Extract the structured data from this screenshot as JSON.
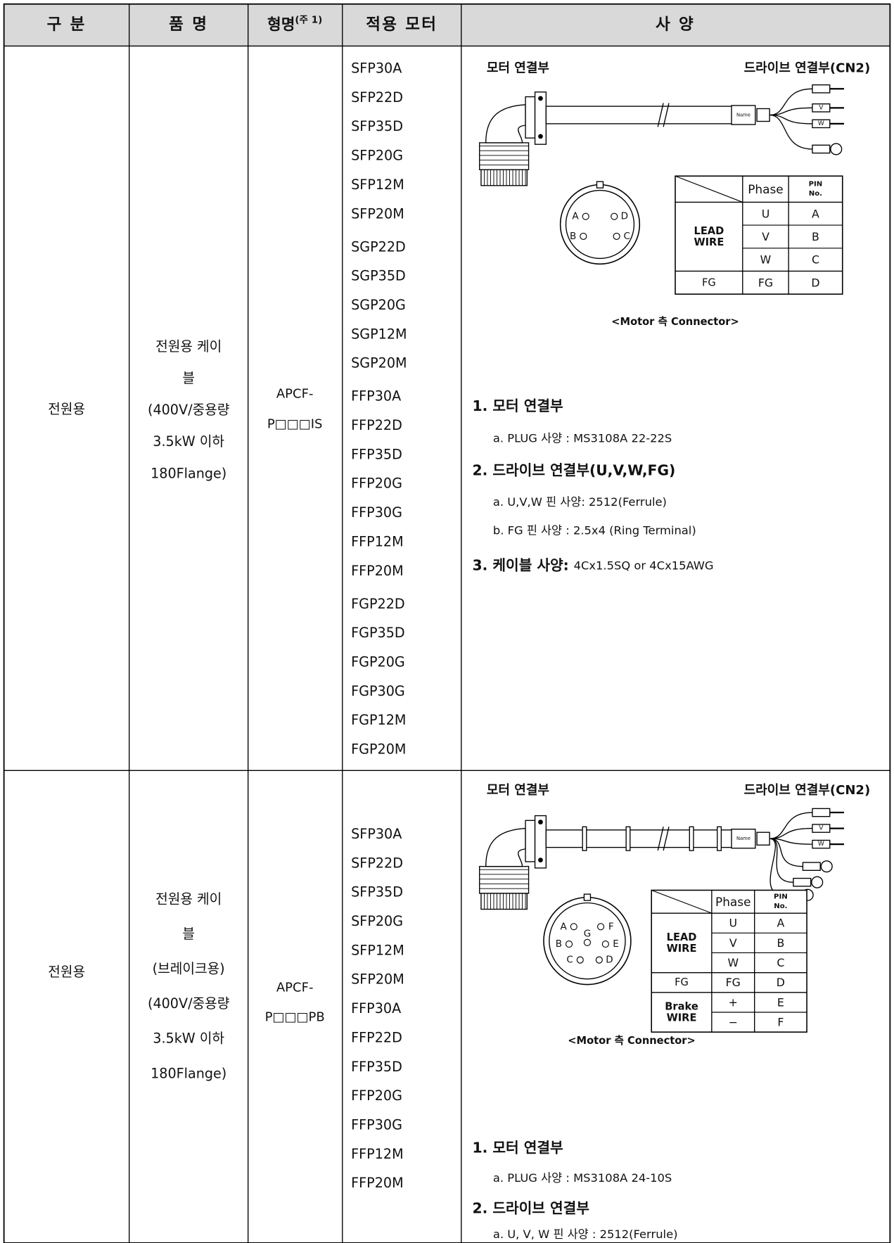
{
  "header": {
    "category": "구 분",
    "product": "품 명",
    "model": "형명",
    "model_note": "(주 1)",
    "motors": "적용 모터",
    "spec": "사 양"
  },
  "rows": [
    {
      "category": "전원용",
      "product": [
        "전원용 케이",
        "블",
        "(400V/중용량",
        "3.5kW 이하",
        "180Flange)"
      ],
      "model": [
        "APCF-",
        "P□□□IS"
      ],
      "motors": [
        [
          "SFP30A",
          "SFP22D",
          "SFP35D",
          "SFP20G",
          "SFP12M",
          "SFP20M"
        ],
        [
          "SGP22D",
          "SGP35D",
          "SGP20G",
          "SGP12M",
          "SGP20M"
        ],
        [
          "FFP30A",
          "FFP22D",
          "FFP35D",
          "FFP20G",
          "FFP30G",
          "FFP12M",
          "FFP20M"
        ],
        [
          "FGP22D",
          "FGP35D",
          "FGP20G",
          "FGP30G",
          "FGP12M",
          "FGP20M"
        ]
      ],
      "spec": {
        "motor_side": "모터 연결부",
        "drive_side": "드라이브 연결부(CN2)",
        "cable_labels": [
          "Name",
          "V",
          "W"
        ],
        "pins": [
          "A",
          "D",
          "B",
          "C"
        ],
        "pin_table": {
          "header": [
            "Phase",
            [
              "PIN",
              "No."
            ]
          ],
          "groups": [
            {
              "name": [
                "LEAD",
                "WIRE"
              ],
              "rows": [
                [
                  "U",
                  "A"
                ],
                [
                  "V",
                  "B"
                ],
                [
                  "W",
                  "C"
                ]
              ]
            },
            {
              "name": [
                "FG"
              ],
              "rows": [
                [
                  "FG",
                  "D"
                ]
              ]
            }
          ]
        },
        "caption": "<Motor 측 Connector>",
        "notes": [
          {
            "heading": "1. 모터 연결부"
          },
          {
            "item": "a. PLUG 사양 : MS3108A 22-22S"
          },
          {
            "heading": "2. 드라이브 연결부(U,V,W,FG)"
          },
          {
            "item": "a. U,V,W 핀 사양: 2512(Ferrule)"
          },
          {
            "item": "b. FG 핀 사양 : 2.5x4 (Ring Terminal)"
          },
          {
            "heading": "3. 케이블 사양:",
            "text": "4Cx1.5SQ or 4Cx15AWG"
          }
        ]
      }
    },
    {
      "category": "전원용",
      "product": [
        "전원용 케이",
        "블",
        "(브레이크용)",
        "(400V/중용량",
        "3.5kW 이하",
        "180Flange)"
      ],
      "model": [
        "APCF-",
        "P□□□PB"
      ],
      "motors": [
        [
          "SFP30A",
          "SFP22D",
          "SFP35D",
          "SFP20G",
          "SFP12M",
          "SFP20M"
        ],
        [
          "FFP30A",
          "FFP22D",
          "FFP35D",
          "FFP20G",
          "FFP30G",
          "FFP12M",
          "FFP20M"
        ]
      ],
      "spec": {
        "motor_side": "모터 연결부",
        "drive_side": "드라이브 연결부(CN2)",
        "cable_labels": [
          "Name",
          "V",
          "W"
        ],
        "pins": [
          "A",
          "F",
          "G",
          "B",
          "E",
          "C",
          "D"
        ],
        "pin_table": {
          "header": [
            "Phase",
            [
              "PIN",
              "No."
            ]
          ],
          "groups": [
            {
              "name": [
                "LEAD",
                "WIRE"
              ],
              "rows": [
                [
                  "U",
                  "A"
                ],
                [
                  "V",
                  "B"
                ],
                [
                  "W",
                  "C"
                ]
              ]
            },
            {
              "name": [
                "FG"
              ],
              "rows": [
                [
                  "FG",
                  "D"
                ]
              ]
            },
            {
              "name": [
                "Brake",
                "WIRE"
              ],
              "rows": [
                [
                  "+",
                  "E"
                ],
                [
                  "−",
                  "F"
                ]
              ]
            }
          ]
        },
        "caption": "<Motor 측 Connector>",
        "notes": [
          {
            "heading": "1. 모터 연결부"
          },
          {
            "item": "a. PLUG 사양 : MS3108A 24-10S"
          },
          {
            "heading": "2. 드라이브 연결부"
          },
          {
            "item": "a. U, V, W 핀 사양 : 2512(Ferrule)"
          }
        ]
      }
    }
  ]
}
